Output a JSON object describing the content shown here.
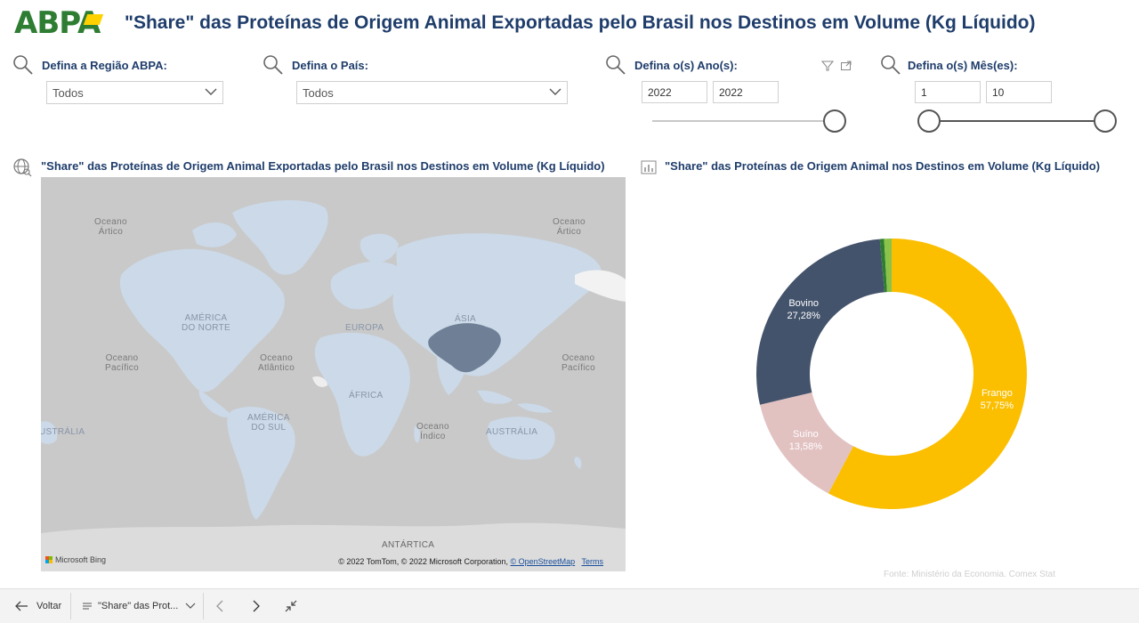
{
  "header": {
    "logo_text": "ABPA",
    "title": "\"Share\" das Proteínas de Origem Animal Exportadas pelo Brasil nos Destinos em Volume (Kg Líquido)"
  },
  "filters": {
    "regiao": {
      "label": "Defina a Região ABPA:",
      "value": "Todos"
    },
    "pais": {
      "label": "Defina o País:",
      "value": "Todos"
    },
    "ano": {
      "label": "Defina o(s) Ano(s):",
      "from": "2022",
      "to": "2022"
    },
    "mes": {
      "label": "Defina o(s) Mês(es):",
      "from": "1",
      "to": "10"
    }
  },
  "map_section": {
    "title": "\"Share\" das Proteínas de Origem Animal Exportadas pelo Brasil nos Destinos em Volume (Kg Líquido)",
    "labels": {
      "oceano_artico": "Oceano\nÁrtico",
      "oceano_artico2": "Oceano\nÁrtico",
      "america_norte": "AMÉRICA\nDO NORTE",
      "europa": "EUROPA",
      "asia": "ÁSIA",
      "oceano_pacifico_w": "Oceano\nPacífico",
      "oceano_atlantico": "Oceano\nAtlântico",
      "africa": "ÁFRICA",
      "oceano_pacifico_e": "Oceano\nPacífico",
      "america_sul": "AMÉRICA\nDO SUL",
      "oceano_indico": "Oceano\nÍndico",
      "australia_w": "USTRÁLIA",
      "australia_e": "AUSTRÁLIA",
      "antartica": "ANTÁRTICA"
    },
    "bing_label": "Microsoft Bing",
    "copyright": "© 2022 TomTom, © 2022 Microsoft Corporation,",
    "osm_link": "© OpenStreetMap",
    "terms_link": "Terms",
    "highlight_color": "#6f8096"
  },
  "donut_section": {
    "title": "\"Share\" das Proteínas de Origem Animal nos Destinos em Volume (Kg Líquido)"
  },
  "chart_data": {
    "type": "pie",
    "title": "\"Share\" das Proteínas de Origem Animal nos Destinos em Volume (Kg Líquido)",
    "series": [
      {
        "name": "Frango",
        "value": 57.75,
        "label": "57,75%",
        "color": "#fbbf00"
      },
      {
        "name": "Suíno",
        "value": 13.58,
        "label": "13,58%",
        "color": "#e2c1c1"
      },
      {
        "name": "Bovino",
        "value": 27.28,
        "label": "27,28%",
        "color": "#43536b"
      },
      {
        "name": "",
        "value": 0.5,
        "label": "",
        "color": "#2e7d32"
      },
      {
        "name": "",
        "value": 0.89,
        "label": "",
        "color": "#8bc34a"
      }
    ]
  },
  "source": "Fonte: Ministério da Economia. Comex Stat",
  "bottombar": {
    "back_label": "Voltar",
    "page_label": "\"Share\" das Prot..."
  }
}
